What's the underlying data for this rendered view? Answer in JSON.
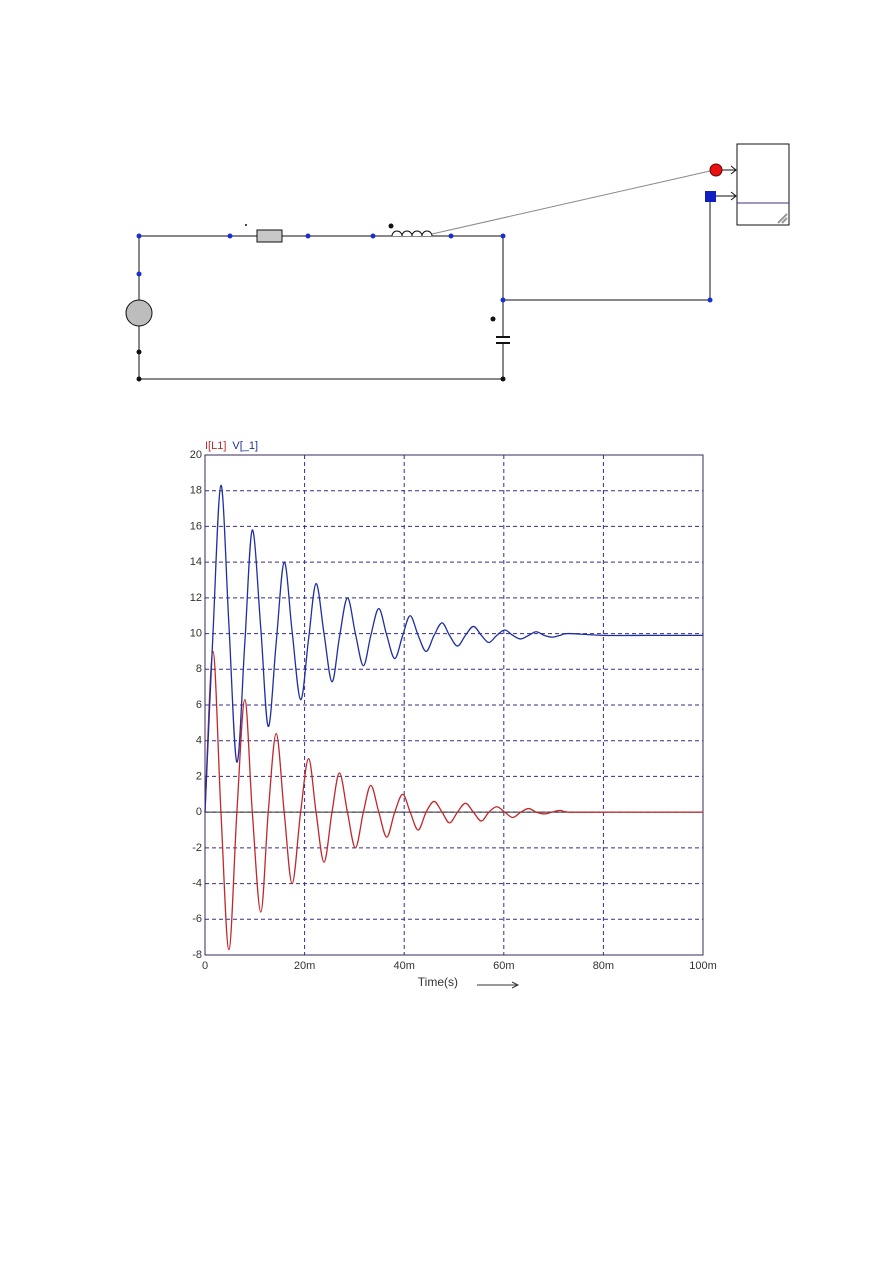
{
  "chart_data": {
    "type": "line",
    "x": [
      0,
      0.0016,
      0.0032,
      0.0048,
      0.0064,
      0.008,
      0.0095,
      0.0112,
      0.0127,
      0.0143,
      0.0159,
      0.0175,
      0.0192,
      0.0208,
      0.0223,
      0.0239,
      0.0255,
      0.027,
      0.0286,
      0.0302,
      0.0318,
      0.0333,
      0.0349,
      0.0365,
      0.0381,
      0.0397,
      0.0412,
      0.0428,
      0.0444,
      0.046,
      0.0476,
      0.0491,
      0.0507,
      0.0523,
      0.0539,
      0.0555,
      0.057,
      0.0586,
      0.0602,
      0.0618,
      0.0634,
      0.065,
      0.0665,
      0.0681,
      0.0697,
      0.0713,
      0.073,
      0.08,
      0.09,
      0.1
    ],
    "series": [
      {
        "name": "I[L1]",
        "color": "#c0282a",
        "values": [
          0,
          9,
          0,
          -7.7,
          0,
          6.3,
          0,
          -5.6,
          0,
          4.4,
          0,
          -4,
          0,
          3,
          0,
          -2.8,
          0,
          2.2,
          0,
          -2,
          0,
          1.5,
          0,
          -1.4,
          0,
          1,
          0,
          -1,
          0,
          0.6,
          0,
          -0.6,
          0,
          0.5,
          0,
          -0.5,
          0,
          0.3,
          0,
          -0.3,
          0,
          0.2,
          0,
          -0.1,
          0,
          0.1,
          0,
          0,
          0,
          0
        ]
      },
      {
        "name": "V[_1]",
        "color": "#1f2fa0",
        "values": [
          0,
          10,
          18.3,
          10.5,
          2.8,
          9.5,
          15.8,
          10.3,
          4.8,
          9.5,
          14,
          10.1,
          6.3,
          9.7,
          12.8,
          10,
          7.3,
          9.8,
          12,
          10,
          8.2,
          9.9,
          11.4,
          9.9,
          8.6,
          9.9,
          11,
          9.9,
          9,
          9.9,
          10.6,
          9.9,
          9.3,
          9.9,
          10.4,
          9.9,
          9.5,
          9.9,
          10.2,
          9.9,
          9.7,
          9.9,
          10.1,
          9.9,
          9.8,
          9.9,
          10,
          9.9,
          9.9,
          9.9
        ]
      }
    ],
    "xlabel": "Time(s)",
    "xlim": [
      0,
      0.1
    ],
    "xticks": [
      0,
      {
        "value": 0.02,
        "label": "20m"
      },
      {
        "value": 0.04,
        "label": "40m"
      },
      {
        "value": 0.06,
        "label": "60m"
      },
      {
        "value": 0.08,
        "label": "80m"
      },
      {
        "value": 0.1,
        "label": "100m"
      }
    ],
    "ylim": [
      -8,
      20
    ],
    "yticks": [
      -8,
      -6,
      -4,
      -2,
      0,
      2,
      4,
      6,
      8,
      10,
      12,
      14,
      16,
      18,
      20
    ],
    "grid": true
  }
}
